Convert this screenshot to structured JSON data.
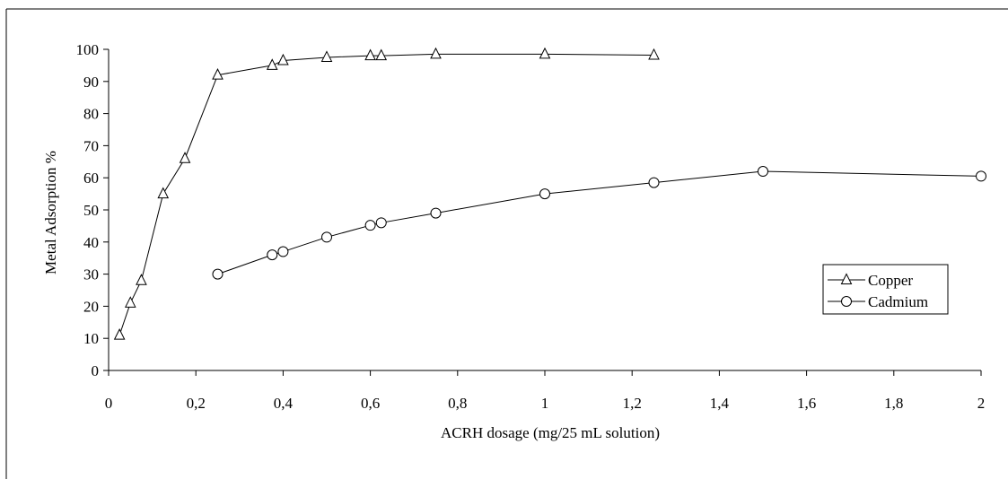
{
  "chart_data": {
    "type": "line",
    "xlabel": "ACRH dosage (mg/25 mL solution)",
    "ylabel": "Metal Adsorption %",
    "xlim": [
      0,
      2
    ],
    "ylim": [
      0,
      100
    ],
    "x_ticks": [
      0,
      0.2,
      0.4,
      0.6,
      0.8,
      1,
      1.2,
      1.4,
      1.6,
      1.8,
      2
    ],
    "x_tick_labels": [
      "0",
      "0,2",
      "0,4",
      "0,6",
      "0,8",
      "1",
      "1,2",
      "1,4",
      "1,6",
      "1,8",
      "2"
    ],
    "y_ticks": [
      0,
      10,
      20,
      30,
      40,
      50,
      60,
      70,
      80,
      90,
      100
    ],
    "y_tick_labels": [
      "0",
      "10",
      "20",
      "30",
      "40",
      "50",
      "60",
      "70",
      "80",
      "90",
      "100"
    ],
    "grid": false,
    "legend_position": "right",
    "series": [
      {
        "name": "Copper",
        "marker": "triangle",
        "color": "#000000",
        "x": [
          0.025,
          0.05,
          0.075,
          0.125,
          0.175,
          0.25,
          0.375,
          0.4,
          0.5,
          0.6,
          0.625,
          0.75,
          1.0,
          1.25
        ],
        "y": [
          11,
          21,
          28,
          55,
          66,
          92,
          95,
          96.5,
          97.5,
          98,
          98,
          98.5,
          98.5,
          98.2
        ]
      },
      {
        "name": "Cadmium",
        "marker": "circle",
        "color": "#000000",
        "x": [
          0.25,
          0.375,
          0.4,
          0.5,
          0.6,
          0.625,
          0.75,
          1.0,
          1.25,
          1.5,
          2.0
        ],
        "y": [
          30,
          36,
          37,
          41.5,
          45.2,
          46,
          49,
          55,
          58.5,
          62,
          60.5
        ]
      }
    ]
  }
}
